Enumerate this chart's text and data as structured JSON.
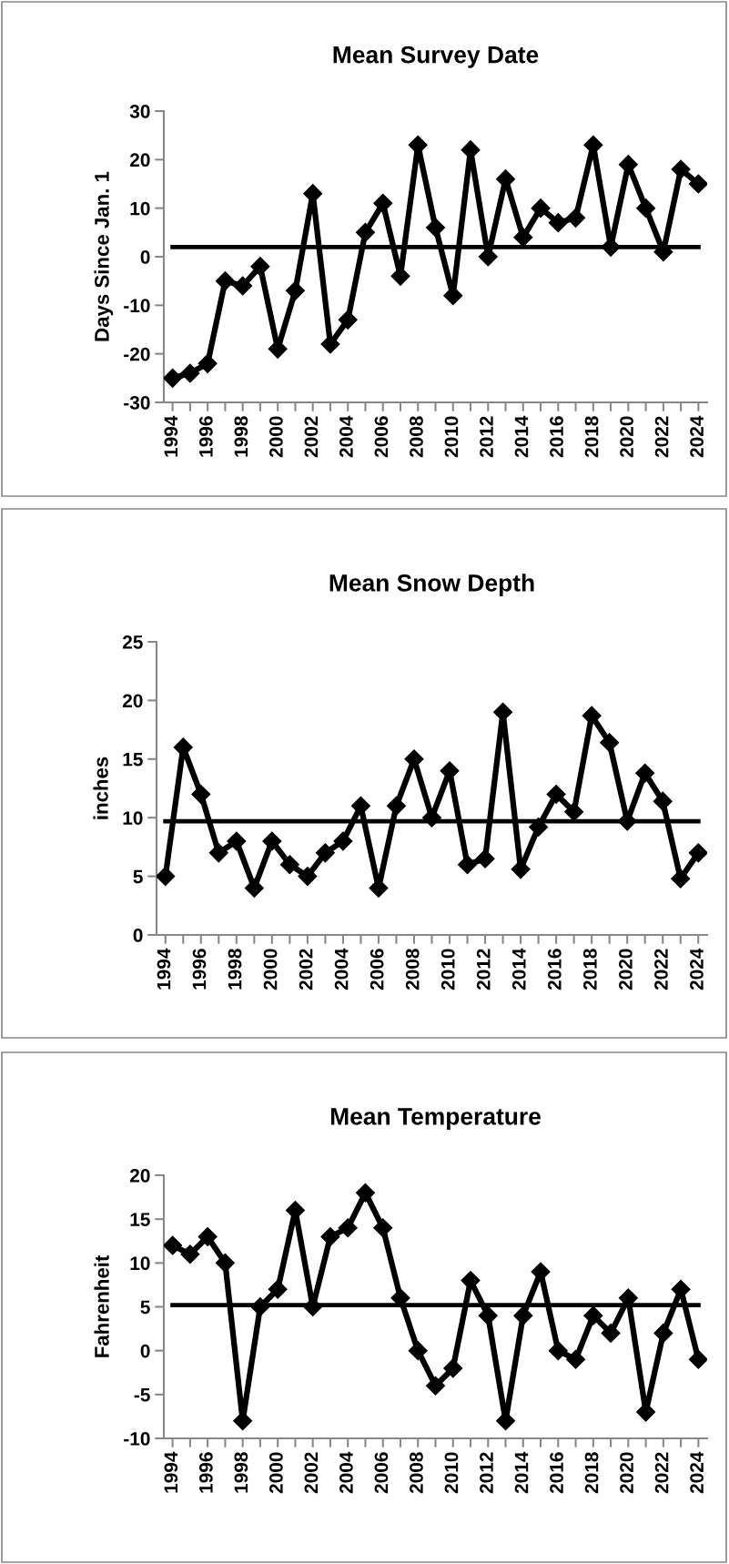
{
  "chart_data": [
    {
      "type": "line",
      "title": "Mean Survey Date",
      "ylabel": "Days Since Jan. 1",
      "categories": [
        "1994",
        null,
        "1996",
        null,
        "1998",
        null,
        "2000",
        null,
        "2002",
        null,
        "2004",
        null,
        "2006",
        null,
        "2008",
        null,
        "2010",
        null,
        "2012",
        null,
        "2014",
        null,
        "2016",
        null,
        "2018",
        null,
        "2020",
        null,
        "2022",
        null,
        "2024"
      ],
      "series": [
        {
          "color": "#000000",
          "values": [
            -25,
            -24,
            -22,
            -5,
            -6,
            -2,
            -19,
            -7,
            13,
            -18,
            -13,
            5,
            11,
            -4,
            23,
            6,
            -8,
            22,
            0,
            16,
            4,
            10,
            7,
            8,
            23,
            2,
            19,
            10,
            1,
            18,
            15
          ]
        }
      ],
      "ylim": [
        -30,
        30
      ],
      "yticks": [
        -30,
        -20,
        -10,
        0,
        10,
        20,
        30
      ],
      "marker": "diamond",
      "line_style": "solid",
      "ref_lines": [
        {
          "axis": "y",
          "value": 2,
          "color": "#000000"
        }
      ]
    },
    {
      "type": "line",
      "title": "Mean Snow Depth",
      "ylabel": "inches",
      "categories": [
        "1994",
        null,
        "1996",
        null,
        "1998",
        null,
        "2000",
        null,
        "2002",
        null,
        "2004",
        null,
        "2006",
        null,
        "2008",
        null,
        "2010",
        null,
        "2012",
        null,
        "2014",
        null,
        "2016",
        null,
        "2018",
        null,
        "2020",
        null,
        "2022",
        null,
        "2024"
      ],
      "series": [
        {
          "color": "#000000",
          "values": [
            5,
            16,
            12,
            7,
            8,
            4,
            8,
            6,
            5,
            7,
            8,
            11,
            4,
            11,
            15,
            10,
            14,
            6,
            6.5,
            19,
            5.6,
            9.2,
            12,
            10.5,
            18.7,
            16.4,
            9.7,
            13.8,
            11.4,
            4.8,
            7
          ]
        }
      ],
      "ylim": [
        0,
        25
      ],
      "yticks": [
        0,
        5,
        10,
        15,
        20,
        25
      ],
      "marker": "diamond",
      "line_style": "solid",
      "ref_lines": [
        {
          "axis": "y",
          "value": 9.7,
          "color": "#000000"
        }
      ]
    },
    {
      "type": "line",
      "title": "Mean Temperature",
      "ylabel": "Fahrenheit",
      "categories": [
        "1994",
        null,
        "1996",
        null,
        "1998",
        null,
        "2000",
        null,
        "2002",
        null,
        "2004",
        null,
        "2006",
        null,
        "2008",
        null,
        "2010",
        null,
        "2012",
        null,
        "2014",
        null,
        "2016",
        null,
        "2018",
        null,
        "2020",
        null,
        "2022",
        null,
        "2024"
      ],
      "series": [
        {
          "color": "#000000",
          "values": [
            12,
            11,
            13,
            10,
            -8,
            5,
            7,
            16,
            5,
            13,
            14,
            18,
            14,
            6,
            0,
            -4,
            -2,
            8,
            4,
            -8,
            4,
            9,
            0,
            -1,
            4,
            2,
            6,
            -7,
            2,
            7,
            -1
          ]
        }
      ],
      "ylim": [
        -10,
        20
      ],
      "yticks": [
        -10,
        -5,
        0,
        5,
        10,
        15,
        20
      ],
      "marker": "diamond",
      "line_style": "solid",
      "ref_lines": [
        {
          "axis": "y",
          "value": 5.2,
          "color": "#000000"
        }
      ]
    }
  ]
}
